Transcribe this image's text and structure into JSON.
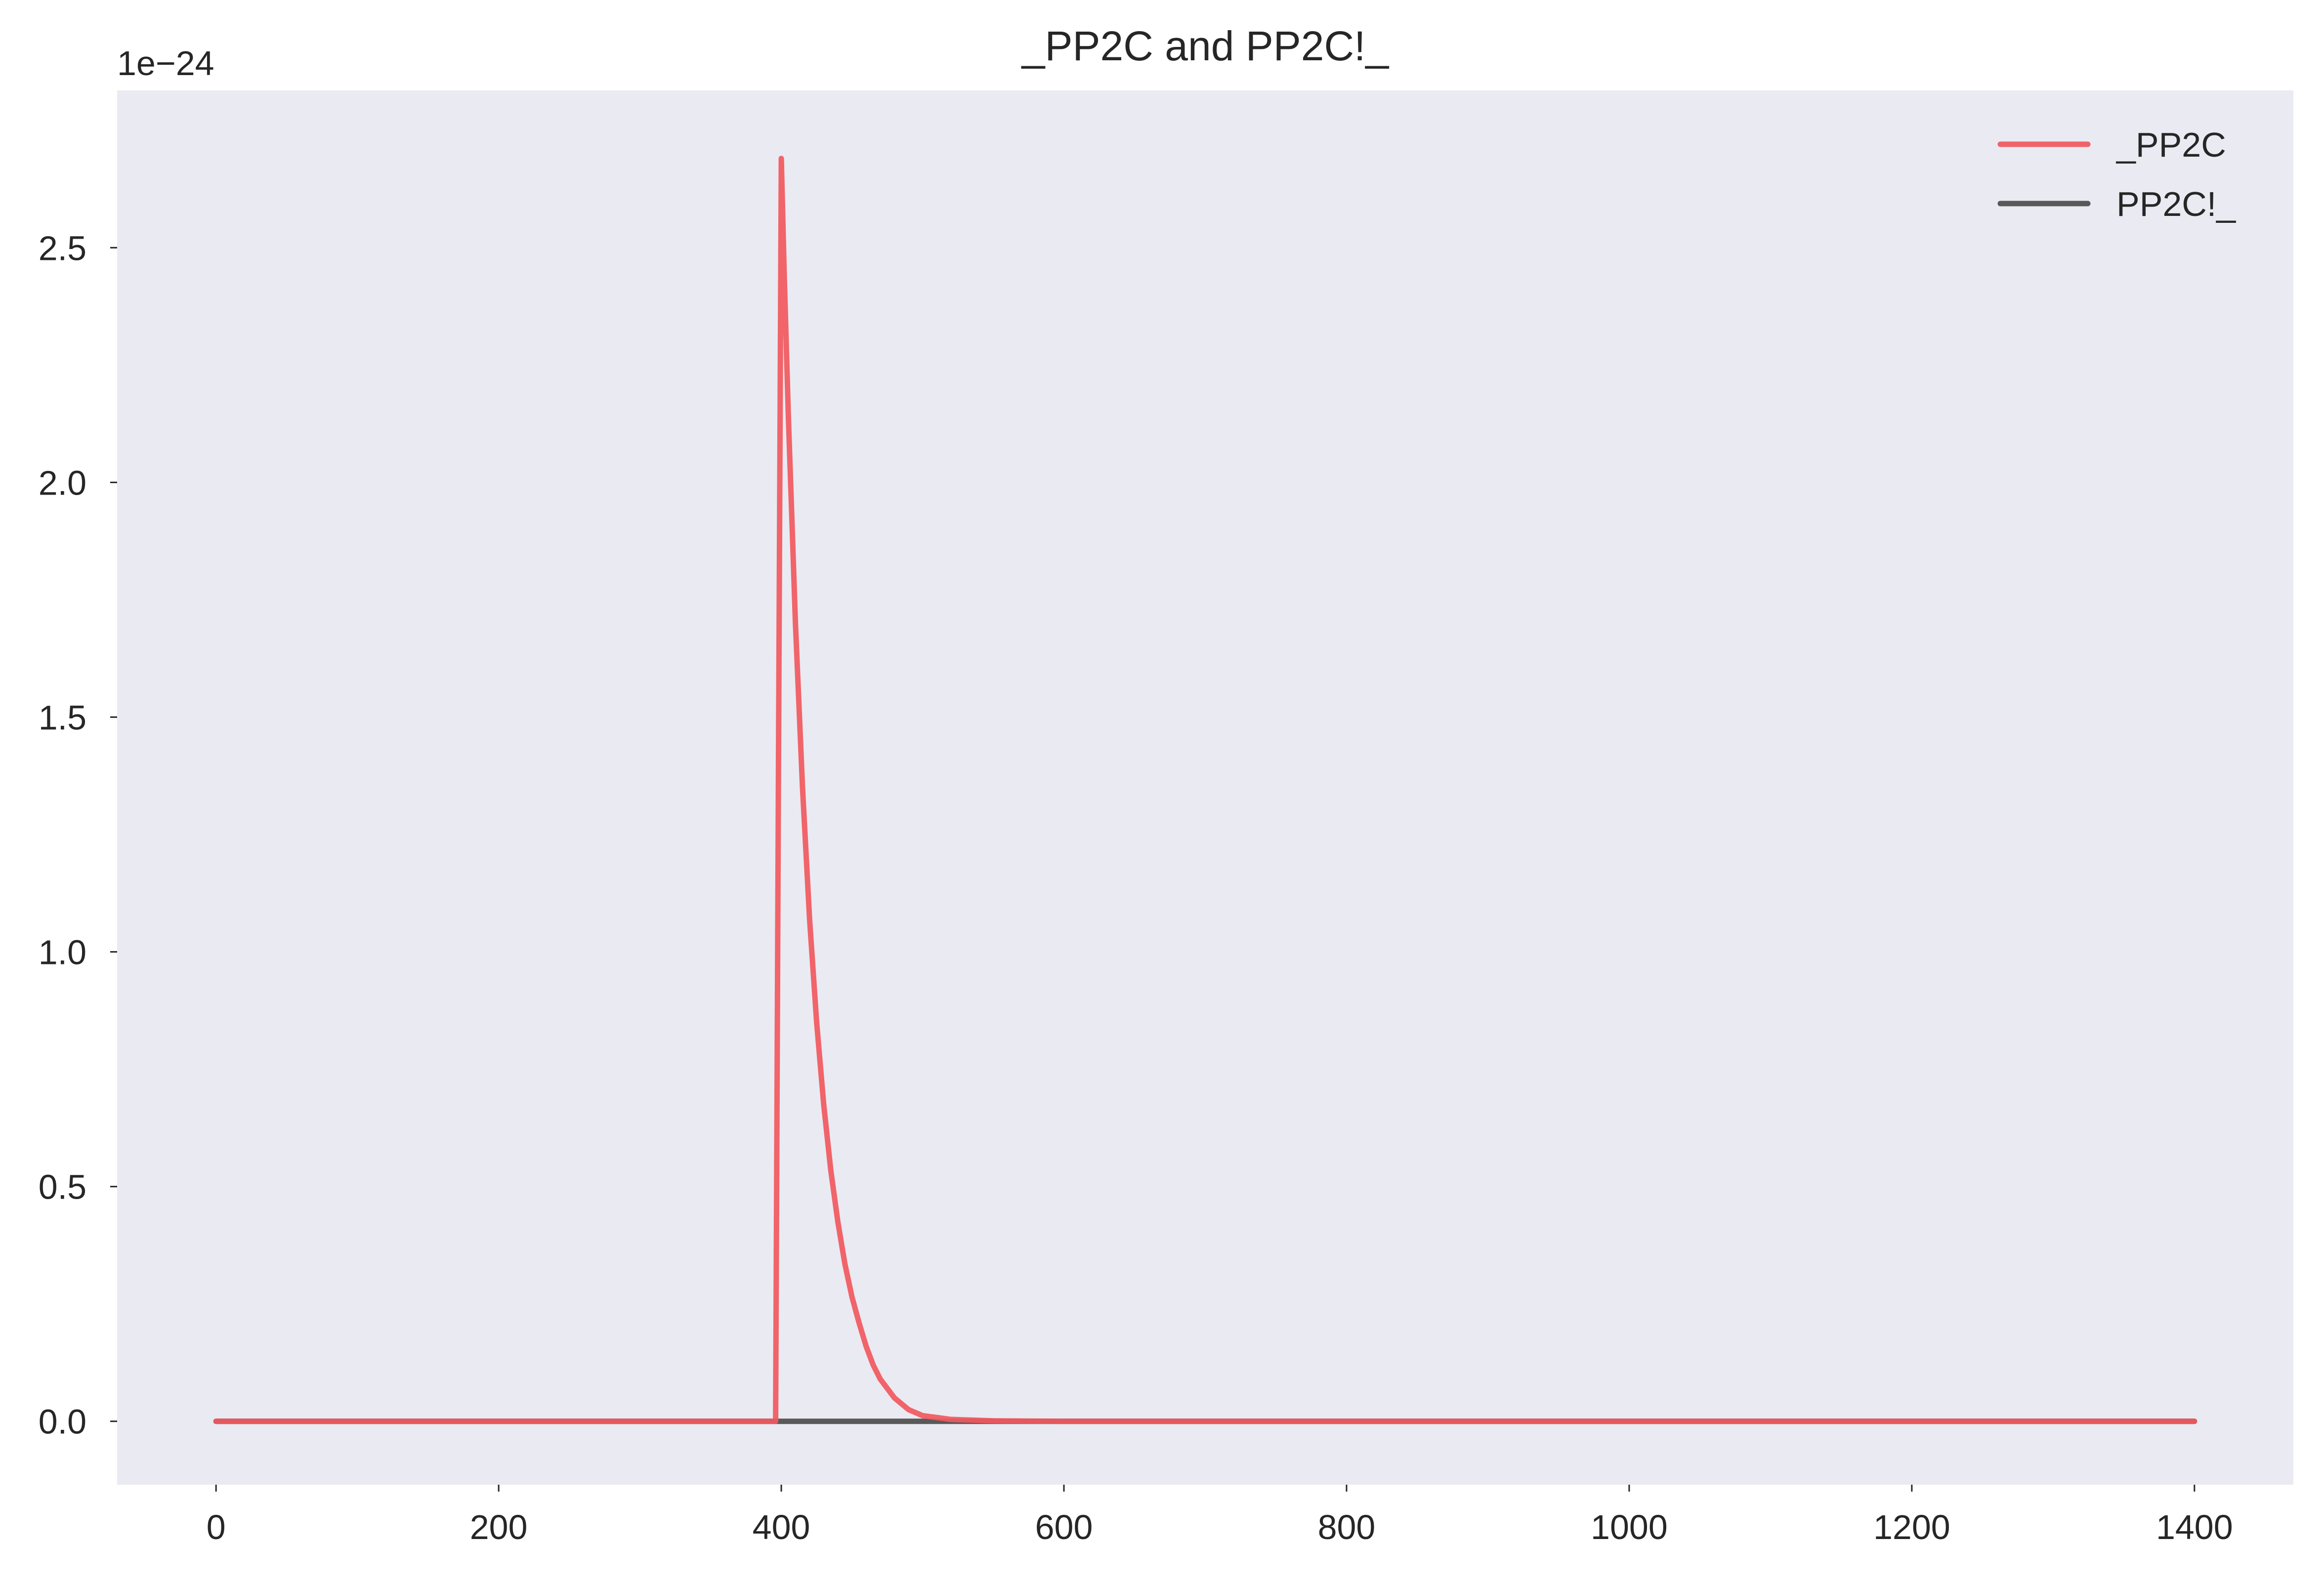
{
  "chart_data": {
    "type": "line",
    "title": "_PP2C and PP2C!_",
    "xlabel": "",
    "ylabel": "",
    "y_offset_label": "1e−24",
    "xlim": [
      -70,
      1470
    ],
    "ylim": [
      -0.135,
      2.835
    ],
    "x_ticks": [
      0,
      200,
      400,
      600,
      800,
      1000,
      1200,
      1400
    ],
    "x_tick_labels": [
      "0",
      "200",
      "400",
      "600",
      "800",
      "1000",
      "1200",
      "1400"
    ],
    "y_ticks": [
      0.0,
      0.5,
      1.0,
      1.5,
      2.0,
      2.5
    ],
    "y_tick_labels": [
      "0.0",
      "0.5",
      "1.0",
      "1.5",
      "2.0",
      "2.5"
    ],
    "grid": false,
    "legend_position": "top-right",
    "background_color": "#eaeaf2",
    "series": [
      {
        "name": "_PP2C",
        "color": "#f0585e",
        "x": [
          0,
          396,
          398,
          400,
          402,
          405,
          410,
          415,
          420,
          425,
          430,
          435,
          440,
          445,
          450,
          455,
          460,
          465,
          470,
          480,
          490,
          500,
          520,
          550,
          600,
          800,
          1000,
          1200,
          1400
        ],
        "y": [
          0,
          0,
          1.4,
          2.69,
          2.45,
          2.14,
          1.7,
          1.35,
          1.07,
          0.85,
          0.675,
          0.535,
          0.425,
          0.335,
          0.265,
          0.21,
          0.16,
          0.12,
          0.09,
          0.05,
          0.025,
          0.012,
          0.004,
          0.001,
          0,
          0,
          0,
          0,
          0
        ]
      },
      {
        "name": "PP2C!_",
        "color": "#4c4c4c",
        "x": [
          0,
          200,
          400,
          600,
          800,
          1000,
          1200,
          1400
        ],
        "y": [
          0,
          0,
          0,
          0,
          0,
          0,
          0,
          0
        ]
      }
    ]
  }
}
